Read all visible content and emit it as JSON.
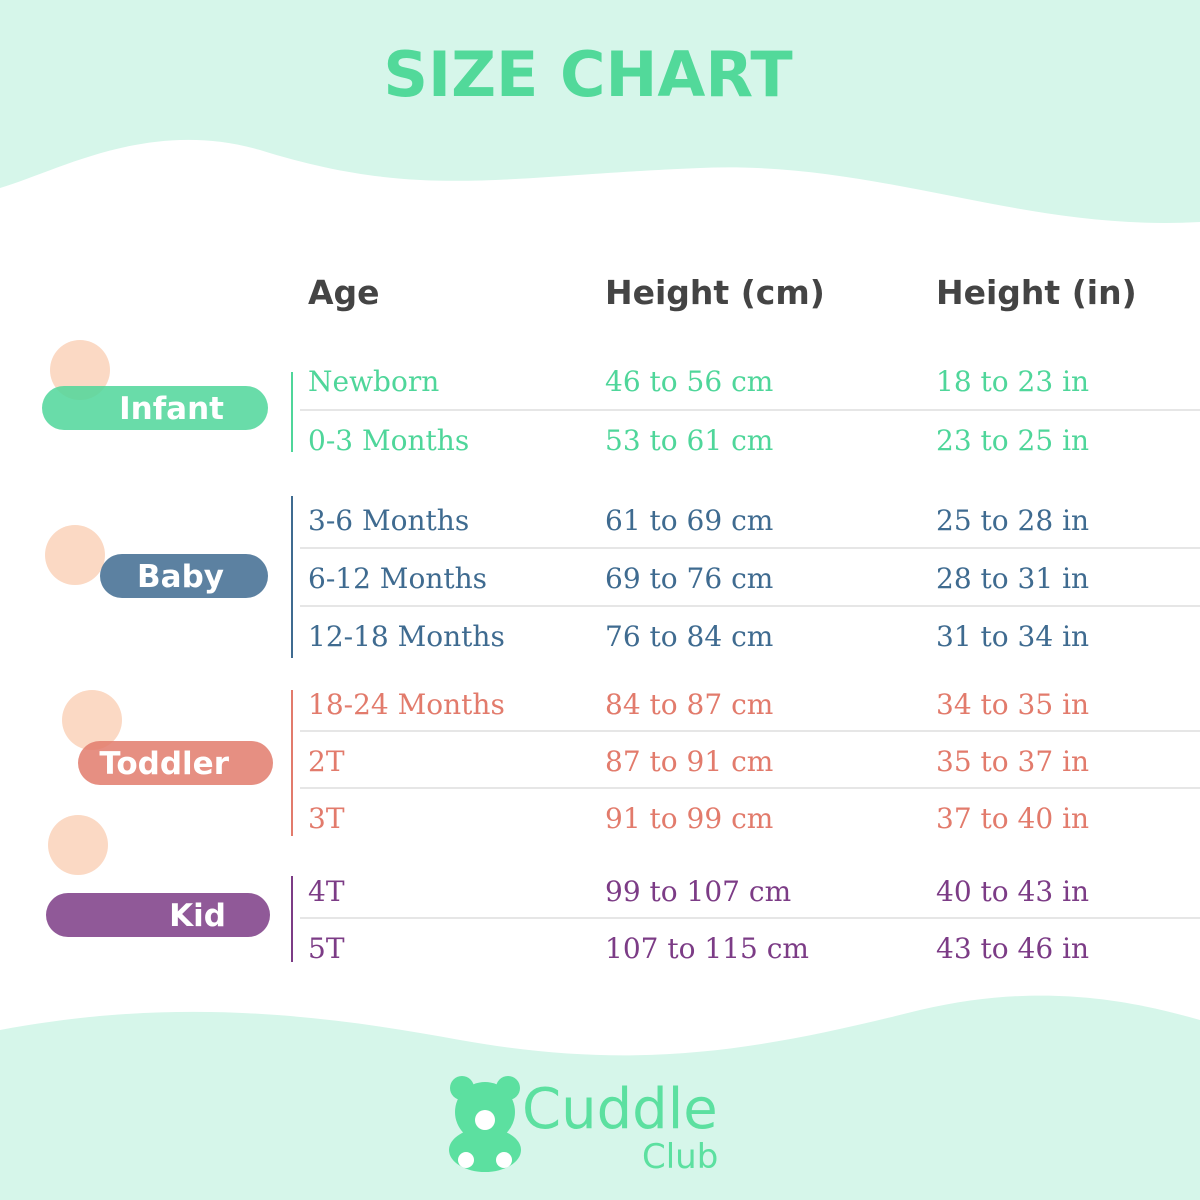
{
  "header": {
    "title": "SIZE CHART"
  },
  "table": {
    "columns": [
      "Age",
      "Height (cm)",
      "Height (in)"
    ],
    "groups": [
      {
        "label": "Infant",
        "color": "#4fd69a",
        "rows": [
          [
            "Newborn",
            "46 to 56 cm",
            "18 to 23 in"
          ],
          [
            "0-3 Months",
            "53 to 61 cm",
            "23 to 25 in"
          ]
        ]
      },
      {
        "label": "Baby",
        "color": "#3f6b90",
        "rows": [
          [
            "3-6 Months",
            "61 to 69 cm",
            "25 to 28 in"
          ],
          [
            "6-12 Months",
            "69 to 76 cm",
            "28 to 31 in"
          ],
          [
            "12-18 Months",
            "76 to 84 cm",
            "31 to 34 in"
          ]
        ]
      },
      {
        "label": "Toddler",
        "color": "#e27b6c",
        "rows": [
          [
            "18-24 Months",
            "84 to 87 cm",
            "34 to 35 in"
          ],
          [
            "2T",
            "87 to 91 cm",
            "35 to 37 in"
          ],
          [
            "3T",
            "91 to 99 cm",
            "37 to 40 in"
          ]
        ]
      },
      {
        "label": "Kid",
        "color": "#7c3c86",
        "rows": [
          [
            "4T",
            "99 to 107 cm",
            "40 to 43 in"
          ],
          [
            "5T",
            "107 to 115 cm",
            "43 to 46 in"
          ]
        ]
      }
    ]
  },
  "footer": {
    "brand": "Cuddle",
    "sub": "Club"
  }
}
